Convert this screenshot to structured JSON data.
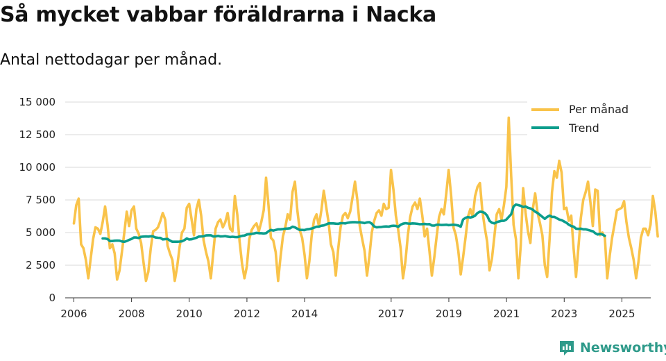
{
  "title": "Så mycket vabbar föräldrarna i Nacka",
  "subtitle": "Antal nettodagar per månad.",
  "brand": {
    "name": "Newsworthy",
    "icon": "newsworthy-logo-icon"
  },
  "colors": {
    "per_month": "#f9c34a",
    "trend": "#0b9d8c",
    "grid": "#d9d9d9",
    "brand": "#2e9a8a"
  },
  "chart_data": {
    "type": "line",
    "title": "Så mycket vabbar föräldrarna i Nacka",
    "ylabel": "Antal nettodagar per månad",
    "ylim": [
      0,
      15000
    ],
    "xlim": [
      2005.7,
      2026.0
    ],
    "y_ticks": [
      0,
      2500,
      5000,
      7500,
      10000,
      12500,
      15000
    ],
    "y_tick_labels": [
      "0",
      "2 500",
      "5 000",
      "7 500",
      "10 000",
      "12 500",
      "15 000"
    ],
    "x_ticks": [
      2006,
      2008,
      2010,
      2012,
      2014,
      2017,
      2019,
      2021,
      2023,
      2025
    ],
    "x_tick_labels": [
      "2006",
      "2008",
      "2010",
      "2012",
      "2014",
      "2017",
      "2019",
      "2021",
      "2023",
      "2025"
    ],
    "legend": {
      "position": "top-right",
      "entries": [
        "Per månad",
        "Trend"
      ]
    },
    "series": [
      {
        "name": "Per månad",
        "start": 2006.0,
        "step": 0.0833,
        "values": [
          5700,
          7100,
          7600,
          4100,
          3800,
          2900,
          1500,
          3000,
          4500,
          5400,
          5300,
          4900,
          5800,
          7000,
          5600,
          3800,
          4100,
          3400,
          1400,
          2100,
          3500,
          5000,
          6600,
          5500,
          6700,
          7000,
          5300,
          4900,
          4200,
          2700,
          1300,
          2000,
          3800,
          5100,
          5200,
          5400,
          5900,
          6500,
          6000,
          4000,
          3400,
          2900,
          1300,
          2400,
          3900,
          5000,
          5300,
          6900,
          7200,
          6000,
          4800,
          6800,
          7500,
          6300,
          4400,
          3500,
          2800,
          1500,
          3400,
          5300,
          5800,
          6000,
          5400,
          5800,
          6500,
          5300,
          5100,
          7800,
          6400,
          4300,
          2600,
          1500,
          2400,
          4500,
          5200,
          5500,
          5700,
          5100,
          5800,
          6700,
          9200,
          7100,
          4600,
          4400,
          3500,
          1300,
          3100,
          4700,
          5400,
          6400,
          6000,
          8100,
          8900,
          6700,
          5200,
          4600,
          3300,
          1500,
          2800,
          4800,
          6000,
          6400,
          5500,
          6700,
          8200,
          7000,
          5800,
          4100,
          3500,
          1700,
          3700,
          5400,
          6300,
          6500,
          6100,
          6600,
          7700,
          8900,
          7500,
          5500,
          4500,
          3600,
          1700,
          3200,
          5000,
          5900,
          6500,
          6700,
          6300,
          7200,
          6800,
          6900,
          9800,
          8300,
          6300,
          5200,
          3800,
          1500,
          2800,
          4800,
          6200,
          7000,
          7300,
          6800,
          7600,
          6300,
          4700,
          5300,
          3600,
          1700,
          3100,
          4700,
          6200,
          6800,
          6400,
          8000,
          9800,
          7900,
          5400,
          4800,
          3600,
          1800,
          3100,
          4600,
          6200,
          6800,
          6200,
          7800,
          8500,
          8800,
          6700,
          5400,
          4300,
          2100,
          3000,
          4700,
          6400,
          6800,
          6000,
          7100,
          8500,
          13800,
          9400,
          5600,
          4500,
          1500,
          4000,
          8400,
          6500,
          5100,
          4200,
          6800,
          8000,
          6500,
          5700,
          4800,
          2500,
          1600,
          4500,
          8100,
          9700,
          9200,
          10500,
          9600,
          6800,
          6900,
          5900,
          6300,
          3800,
          1600,
          3900,
          6100,
          7500,
          8100,
          8900,
          7300,
          5500,
          8300,
          8200,
          4800,
          5000,
          4600,
          1500,
          3200,
          4600,
          5600,
          6700,
          6800,
          6900,
          7400,
          5800,
          4600,
          3800,
          2900,
          1500,
          2800,
          4600,
          5300,
          5300,
          4800,
          5600,
          7800,
          6600,
          4700
        ]
      },
      {
        "name": "Trend",
        "start": 2007.0,
        "step": 0.0833,
        "values": [
          4550,
          4550,
          4500,
          4350,
          4350,
          4380,
          4390,
          4380,
          4320,
          4290,
          4350,
          4440,
          4510,
          4620,
          4620,
          4580,
          4680,
          4690,
          4700,
          4690,
          4720,
          4700,
          4620,
          4600,
          4590,
          4480,
          4500,
          4510,
          4390,
          4300,
          4300,
          4300,
          4310,
          4330,
          4420,
          4550,
          4470,
          4490,
          4550,
          4600,
          4690,
          4700,
          4720,
          4780,
          4790,
          4790,
          4700,
          4710,
          4750,
          4700,
          4710,
          4730,
          4690,
          4660,
          4680,
          4660,
          4650,
          4700,
          4750,
          4770,
          4850,
          4880,
          4900,
          4930,
          4980,
          4950,
          4950,
          4930,
          4960,
          5100,
          5200,
          5150,
          5200,
          5250,
          5250,
          5270,
          5300,
          5310,
          5330,
          5450,
          5400,
          5300,
          5200,
          5200,
          5190,
          5250,
          5270,
          5310,
          5380,
          5450,
          5450,
          5520,
          5550,
          5620,
          5700,
          5710,
          5700,
          5680,
          5670,
          5720,
          5720,
          5700,
          5750,
          5780,
          5790,
          5800,
          5780,
          5790,
          5760,
          5730,
          5780,
          5800,
          5680,
          5470,
          5400,
          5420,
          5430,
          5460,
          5470,
          5450,
          5500,
          5520,
          5510,
          5440,
          5600,
          5680,
          5720,
          5690,
          5680,
          5700,
          5690,
          5670,
          5640,
          5650,
          5660,
          5640,
          5650,
          5540,
          5530,
          5600,
          5600,
          5580,
          5590,
          5600,
          5570,
          5590,
          5600,
          5580,
          5540,
          5450,
          6000,
          6130,
          6190,
          6150,
          6200,
          6300,
          6500,
          6600,
          6580,
          6500,
          6300,
          5900,
          5750,
          5700,
          5800,
          5850,
          5900,
          5900,
          6000,
          6200,
          6400,
          7000,
          7150,
          7100,
          7050,
          6960,
          7000,
          6900,
          6850,
          6750,
          6600,
          6500,
          6350,
          6200,
          6050,
          6200,
          6300,
          6200,
          6200,
          6100,
          6000,
          5950,
          5850,
          5750,
          5600,
          5500,
          5450,
          5300,
          5280,
          5300,
          5250,
          5250,
          5200,
          5150,
          5100,
          4950,
          4850,
          4900,
          4850,
          4750
        ]
      }
    ]
  }
}
